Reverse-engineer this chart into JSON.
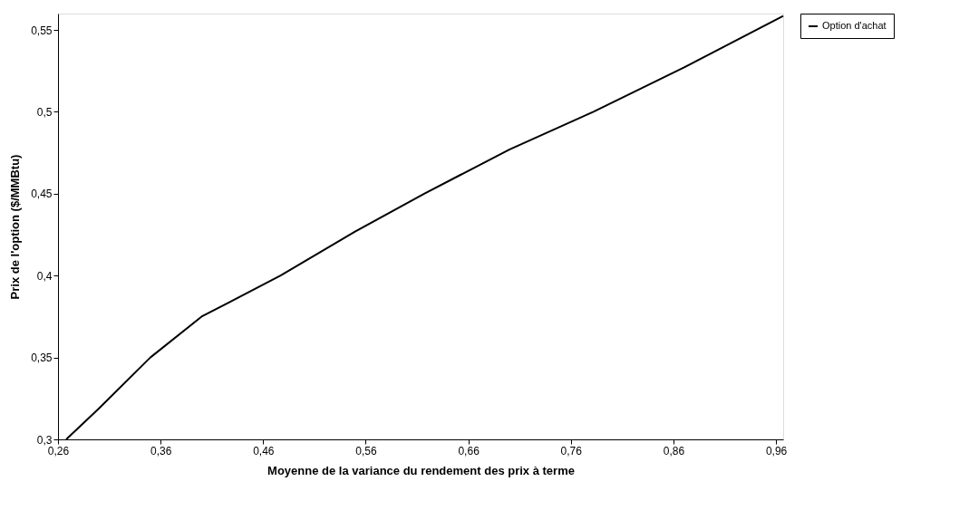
{
  "chart_data": {
    "type": "line",
    "xlabel": "Moyenne de la variance du rendement des prix à terme",
    "ylabel": "Prix de l'option ($/MMBtu)",
    "x": [
      0.268,
      0.3,
      0.35,
      0.4,
      0.477,
      0.55,
      0.617,
      0.7,
      0.782,
      0.87,
      0.967
    ],
    "series": [
      {
        "name": "Option d'achat",
        "color": "#000000",
        "values": [
          0.3,
          0.319,
          0.35,
          0.375,
          0.4,
          0.427,
          0.45,
          0.477,
          0.5,
          0.527,
          0.5586
        ]
      }
    ],
    "xlim": [
      0.26,
      0.967
    ],
    "ylim": [
      0.3,
      0.56
    ],
    "xticks": [
      {
        "value": 0.26,
        "label": "0,26"
      },
      {
        "value": 0.36,
        "label": "0,36"
      },
      {
        "value": 0.46,
        "label": "0,46"
      },
      {
        "value": 0.56,
        "label": "0,56"
      },
      {
        "value": 0.66,
        "label": "0,66"
      },
      {
        "value": 0.76,
        "label": "0,76"
      },
      {
        "value": 0.86,
        "label": "0,86"
      },
      {
        "value": 0.96,
        "label": "0,96"
      }
    ],
    "yticks": [
      {
        "value": 0.3,
        "label": "0,3"
      },
      {
        "value": 0.35,
        "label": "0,35"
      },
      {
        "value": 0.4,
        "label": "0,4"
      },
      {
        "value": 0.45,
        "label": "0,45"
      },
      {
        "value": 0.5,
        "label": "0,5"
      },
      {
        "value": 0.55,
        "label": "0,55"
      }
    ],
    "grid": false,
    "legend": "right",
    "marker": "none",
    "line_style": "solid"
  }
}
